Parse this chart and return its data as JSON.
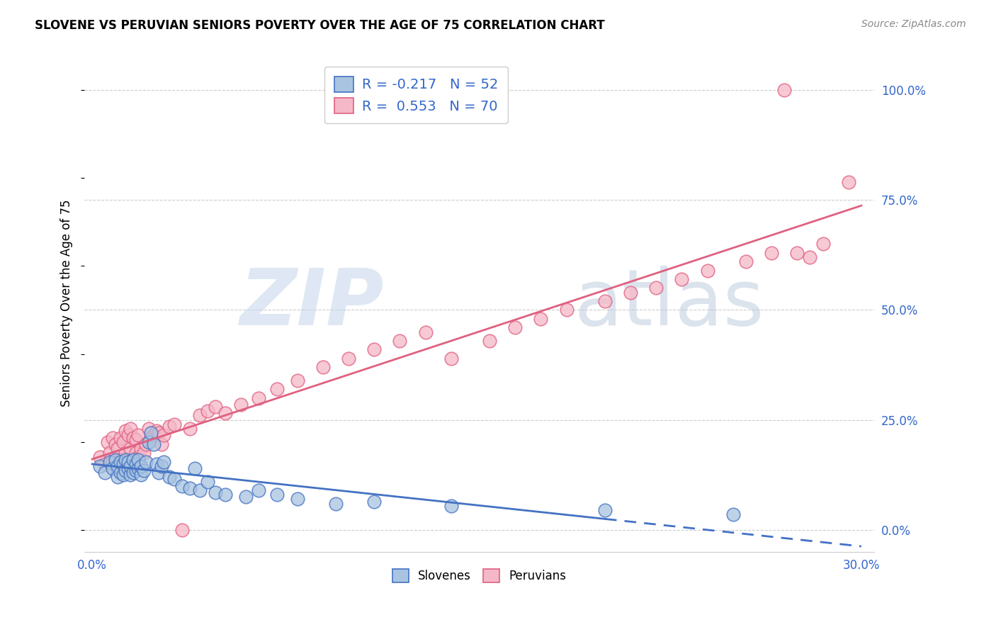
{
  "title": "SLOVENE VS PERUVIAN SENIORS POVERTY OVER THE AGE OF 75 CORRELATION CHART",
  "source": "Source: ZipAtlas.com",
  "ylabel": "Seniors Poverty Over the Age of 75",
  "xlim": [
    -0.003,
    0.305
  ],
  "ylim": [
    -0.05,
    1.08
  ],
  "slovene_color": "#a8c4e0",
  "peruvian_color": "#f5b8c8",
  "slovene_line_color": "#4472c4",
  "peruvian_line_color": "#e06080",
  "slovene_R": -0.217,
  "slovene_N": 52,
  "peruvian_R": 0.553,
  "peruvian_N": 70,
  "legend_text_color": "#3366cc",
  "background_color": "#ffffff",
  "watermark_zip": "ZIP",
  "watermark_atlas": "atlas",
  "slovene_x": [
    0.003,
    0.005,
    0.007,
    0.008,
    0.009,
    0.01,
    0.01,
    0.011,
    0.011,
    0.012,
    0.012,
    0.013,
    0.013,
    0.014,
    0.014,
    0.015,
    0.015,
    0.016,
    0.016,
    0.017,
    0.017,
    0.018,
    0.018,
    0.019,
    0.019,
    0.02,
    0.021,
    0.022,
    0.023,
    0.024,
    0.025,
    0.026,
    0.027,
    0.028,
    0.03,
    0.032,
    0.035,
    0.038,
    0.04,
    0.042,
    0.045,
    0.048,
    0.052,
    0.06,
    0.065,
    0.072,
    0.08,
    0.095,
    0.11,
    0.14,
    0.2,
    0.25
  ],
  "slovene_y": [
    0.145,
    0.13,
    0.155,
    0.14,
    0.16,
    0.12,
    0.145,
    0.13,
    0.155,
    0.125,
    0.15,
    0.135,
    0.16,
    0.14,
    0.155,
    0.125,
    0.145,
    0.13,
    0.16,
    0.135,
    0.15,
    0.14,
    0.16,
    0.125,
    0.145,
    0.135,
    0.155,
    0.2,
    0.22,
    0.195,
    0.15,
    0.13,
    0.145,
    0.155,
    0.12,
    0.115,
    0.1,
    0.095,
    0.14,
    0.09,
    0.11,
    0.085,
    0.08,
    0.075,
    0.09,
    0.08,
    0.07,
    0.06,
    0.065,
    0.055,
    0.045,
    0.035
  ],
  "peruvian_x": [
    0.003,
    0.005,
    0.006,
    0.007,
    0.008,
    0.008,
    0.009,
    0.009,
    0.01,
    0.01,
    0.011,
    0.011,
    0.012,
    0.012,
    0.013,
    0.013,
    0.014,
    0.014,
    0.015,
    0.015,
    0.016,
    0.016,
    0.017,
    0.017,
    0.018,
    0.018,
    0.019,
    0.02,
    0.021,
    0.022,
    0.023,
    0.024,
    0.025,
    0.026,
    0.027,
    0.028,
    0.03,
    0.032,
    0.035,
    0.038,
    0.042,
    0.045,
    0.048,
    0.052,
    0.058,
    0.065,
    0.072,
    0.08,
    0.09,
    0.1,
    0.11,
    0.12,
    0.13,
    0.14,
    0.155,
    0.165,
    0.175,
    0.185,
    0.2,
    0.21,
    0.22,
    0.23,
    0.24,
    0.255,
    0.265,
    0.275,
    0.285,
    0.295,
    0.27,
    0.28
  ],
  "peruvian_y": [
    0.165,
    0.15,
    0.2,
    0.175,
    0.155,
    0.21,
    0.165,
    0.195,
    0.15,
    0.185,
    0.16,
    0.21,
    0.155,
    0.2,
    0.175,
    0.225,
    0.16,
    0.215,
    0.185,
    0.23,
    0.155,
    0.21,
    0.175,
    0.205,
    0.165,
    0.215,
    0.185,
    0.175,
    0.195,
    0.23,
    0.21,
    0.215,
    0.225,
    0.22,
    0.195,
    0.215,
    0.235,
    0.24,
    0.0,
    0.23,
    0.26,
    0.27,
    0.28,
    0.265,
    0.285,
    0.3,
    0.32,
    0.34,
    0.37,
    0.39,
    0.41,
    0.43,
    0.45,
    0.39,
    0.43,
    0.46,
    0.48,
    0.5,
    0.52,
    0.54,
    0.55,
    0.57,
    0.59,
    0.61,
    0.63,
    0.63,
    0.65,
    0.79,
    1.0,
    0.62
  ],
  "grid_color": "#cccccc",
  "tick_color": "#3366cc",
  "title_fontsize": 12,
  "axis_fontsize": 12,
  "legend_fontsize": 14
}
